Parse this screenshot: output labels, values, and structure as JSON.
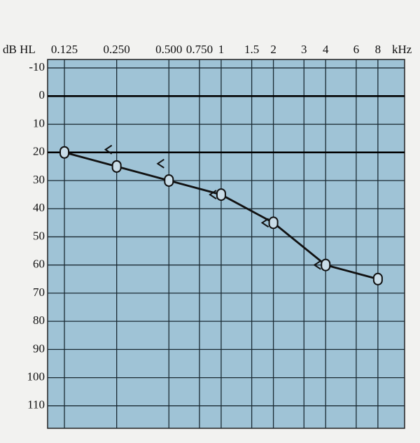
{
  "chart_data": {
    "type": "audiogram",
    "y_label": "dB HL",
    "x_label": "kHz",
    "xscale": "log",
    "xlim": [
      0.1,
      11.4
    ],
    "xticks": [
      0.125,
      {
        "value": 0.25,
        "label": "0.250"
      },
      {
        "value": 0.5,
        "label": "0.500"
      },
      {
        "value": 0.75,
        "label": "0.750"
      },
      1,
      1.5,
      2,
      3,
      4,
      6,
      8
    ],
    "ylim": [
      -13,
      118
    ],
    "yinverted": true,
    "yticks": [
      -10,
      0,
      10,
      20,
      30,
      40,
      50,
      60,
      70,
      80,
      90,
      100,
      110
    ],
    "reference_lines": [
      0,
      20
    ],
    "grid": true,
    "background": "#9fc3d6",
    "series": [
      {
        "x": [
          0.125,
          0.25,
          0.5,
          1,
          2,
          4,
          8
        ],
        "values": [
          20,
          25,
          30,
          35,
          45,
          60,
          65
        ],
        "marker": "O",
        "line": true,
        "color": "#111111"
      },
      {
        "x": [
          0.25,
          0.5,
          1,
          2,
          4
        ],
        "values": [
          19,
          24,
          35,
          45,
          60
        ],
        "marker": "<",
        "line": false,
        "color": "#111111"
      }
    ]
  }
}
